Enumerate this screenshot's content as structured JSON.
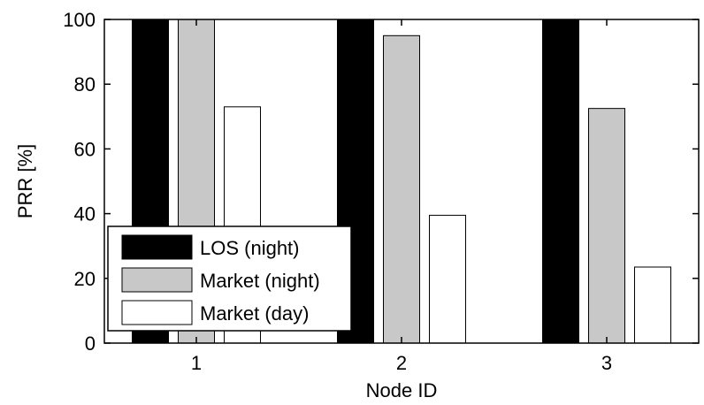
{
  "chart_data": {
    "type": "bar",
    "xlabel": "Node ID",
    "ylabel": "PRR [%]",
    "ylim": [
      0,
      100
    ],
    "yticks": [
      0,
      20,
      40,
      60,
      80,
      100
    ],
    "categories": [
      "1",
      "2",
      "3"
    ],
    "series": [
      {
        "name": "LOS (night)",
        "color": "#000000",
        "values": [
          100,
          100,
          100
        ]
      },
      {
        "name": "Market (night)",
        "color": "#c8c8c8",
        "values": [
          100,
          95,
          72.5
        ]
      },
      {
        "name": "Market (day)",
        "color": "#ffffff",
        "values": [
          73,
          39.5,
          23.5
        ]
      }
    ],
    "legend": "lower-left",
    "grid": false
  }
}
